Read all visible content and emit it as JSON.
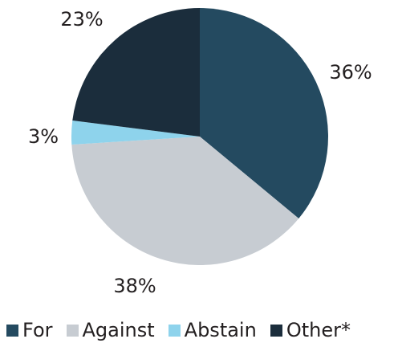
{
  "chart_data": {
    "type": "pie",
    "slices": [
      {
        "label": "For",
        "value": 36,
        "value_label": "36%",
        "color": "#244a60"
      },
      {
        "label": "Against",
        "value": 38,
        "value_label": "38%",
        "color": "#c7ccd2"
      },
      {
        "label": "Abstain",
        "value": 3,
        "value_label": "3%",
        "color": "#8ed3ec"
      },
      {
        "label": "Other*",
        "value": 23,
        "value_label": "23%",
        "color": "#1b2d3c"
      }
    ],
    "start_angle_deg": 0,
    "direction": "clockwise",
    "legend_position": "bottom"
  }
}
